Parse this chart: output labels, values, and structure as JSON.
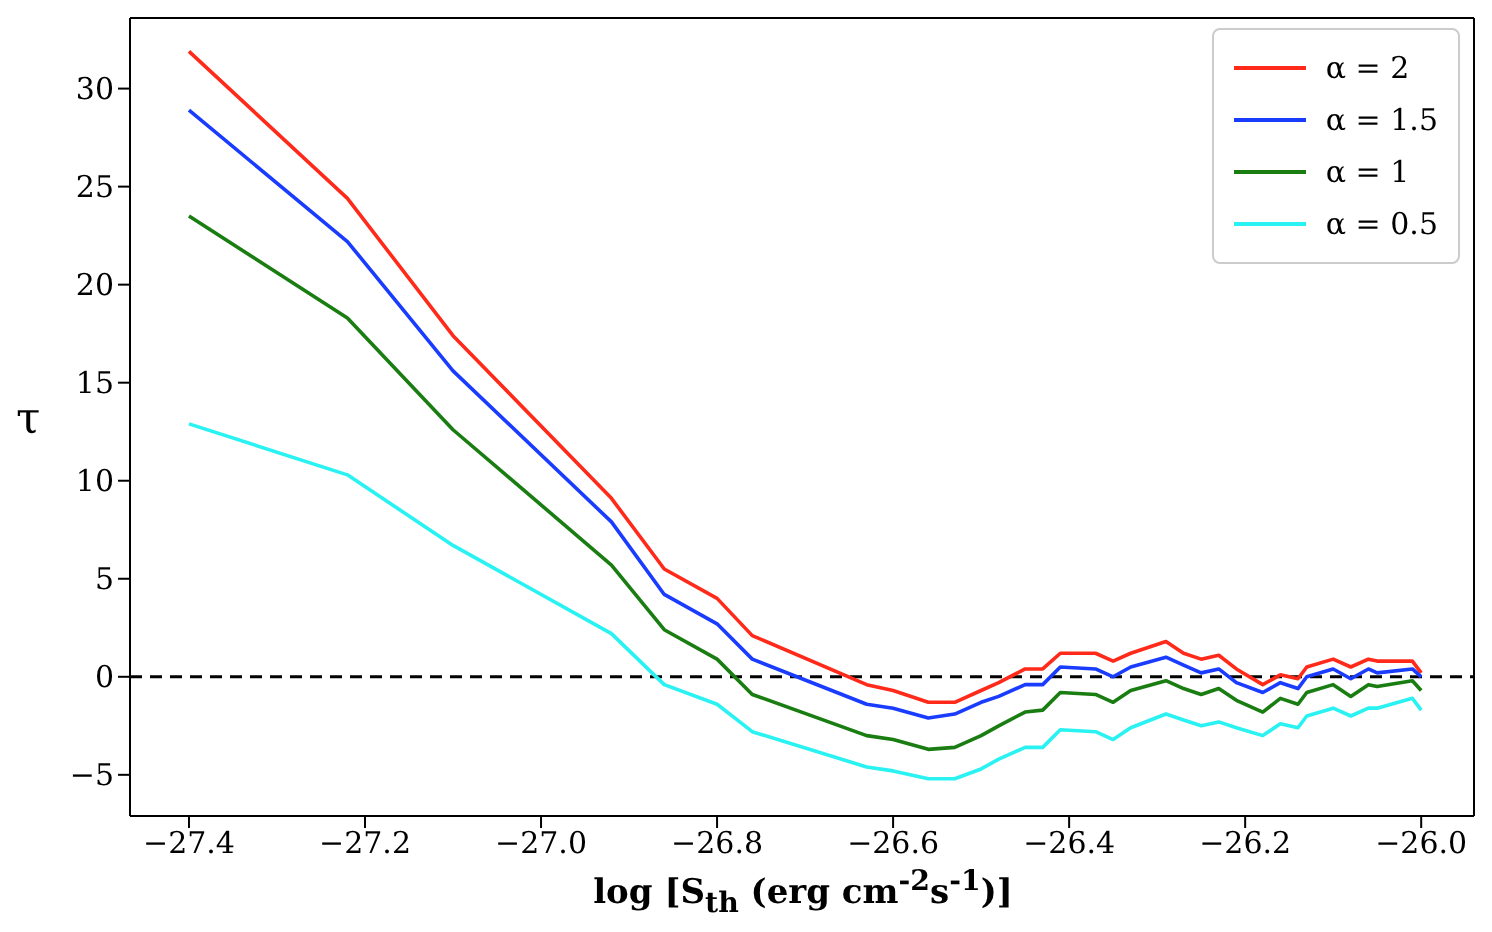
{
  "chart_data": {
    "type": "line",
    "xlabel": "log [S$_{th}$ (erg cm$^{-2}$s$^{-1}$)]",
    "ylabel": "τ",
    "x": [
      -27.4,
      -27.22,
      -27.1,
      -26.92,
      -26.86,
      -26.8,
      -26.76,
      -26.63,
      -26.6,
      -26.56,
      -26.53,
      -26.5,
      -26.48,
      -26.45,
      -26.43,
      -26.41,
      -26.37,
      -26.35,
      -26.33,
      -26.29,
      -26.27,
      -26.25,
      -26.23,
      -26.21,
      -26.18,
      -26.16,
      -26.14,
      -26.13,
      -26.1,
      -26.08,
      -26.06,
      -26.05,
      -26.01,
      -26.0
    ],
    "series": [
      {
        "name": "α = 2",
        "color": "#ff2a1a",
        "values": [
          31.9,
          24.4,
          17.4,
          9.1,
          5.5,
          4.0,
          2.1,
          -0.4,
          -0.7,
          -1.3,
          -1.3,
          -0.7,
          -0.3,
          0.4,
          0.4,
          1.2,
          1.2,
          0.8,
          1.2,
          1.8,
          1.2,
          0.9,
          1.1,
          0.4,
          -0.4,
          0.1,
          -0.1,
          0.5,
          0.9,
          0.5,
          0.9,
          0.8,
          0.8,
          0.2
        ]
      },
      {
        "name": "α = 1.5",
        "color": "#1a3cff",
        "values": [
          28.9,
          22.2,
          15.6,
          7.9,
          4.2,
          2.7,
          0.9,
          -1.4,
          -1.6,
          -2.1,
          -1.9,
          -1.3,
          -1.0,
          -0.4,
          -0.4,
          0.5,
          0.4,
          0,
          0.5,
          1.0,
          0.6,
          0.2,
          0.4,
          -0.3,
          -0.8,
          -0.3,
          -0.6,
          0,
          0.4,
          -0.1,
          0.4,
          0.2,
          0.4,
          0
        ]
      },
      {
        "name": "α = 1",
        "color": "#1a7d12",
        "values": [
          23.5,
          18.3,
          12.6,
          5.7,
          2.4,
          0.9,
          -0.9,
          -3.0,
          -3.2,
          -3.7,
          -3.6,
          -3.0,
          -2.5,
          -1.8,
          -1.7,
          -0.8,
          -0.9,
          -1.3,
          -0.7,
          -0.2,
          -0.6,
          -0.9,
          -0.6,
          -1.2,
          -1.8,
          -1.1,
          -1.4,
          -0.8,
          -0.4,
          -1.0,
          -0.4,
          -0.5,
          -0.2,
          -0.7
        ]
      },
      {
        "name": "α = 0.5",
        "color": "#2af2f2",
        "values": [
          12.9,
          10.3,
          6.7,
          2.2,
          -0.4,
          -1.4,
          -2.8,
          -4.6,
          -4.8,
          -5.2,
          -5.2,
          -4.7,
          -4.2,
          -3.6,
          -3.6,
          -2.7,
          -2.8,
          -3.2,
          -2.6,
          -1.9,
          -2.2,
          -2.5,
          -2.3,
          -2.6,
          -3.0,
          -2.4,
          -2.6,
          -2.0,
          -1.6,
          -2.0,
          -1.6,
          -1.6,
          -1.1,
          -1.7
        ]
      }
    ],
    "xlim": [
      -27.467,
      -25.94
    ],
    "xticks": [
      {
        "value": -27.4,
        "label": "−27.4"
      },
      {
        "value": -27.2,
        "label": "−27.2"
      },
      {
        "value": -27.0,
        "label": "−27.0"
      },
      {
        "value": -26.8,
        "label": "−26.8"
      },
      {
        "value": -26.6,
        "label": "−26.6"
      },
      {
        "value": -26.4,
        "label": "−26.4"
      },
      {
        "value": -26.2,
        "label": "−26.2"
      },
      {
        "value": -26.0,
        "label": "−26.0"
      }
    ],
    "ylim": [
      -7.1,
      33.6
    ],
    "yticks": [
      {
        "value": -5,
        "label": "−5"
      },
      0,
      5,
      10,
      15,
      20,
      25,
      30
    ],
    "ref_lines": [
      {
        "axis": "y",
        "value": 0,
        "color": "#000000",
        "line_style": "dashed"
      }
    ],
    "legend": "top right",
    "grid": false,
    "marker": "none",
    "line_style": "solid"
  }
}
